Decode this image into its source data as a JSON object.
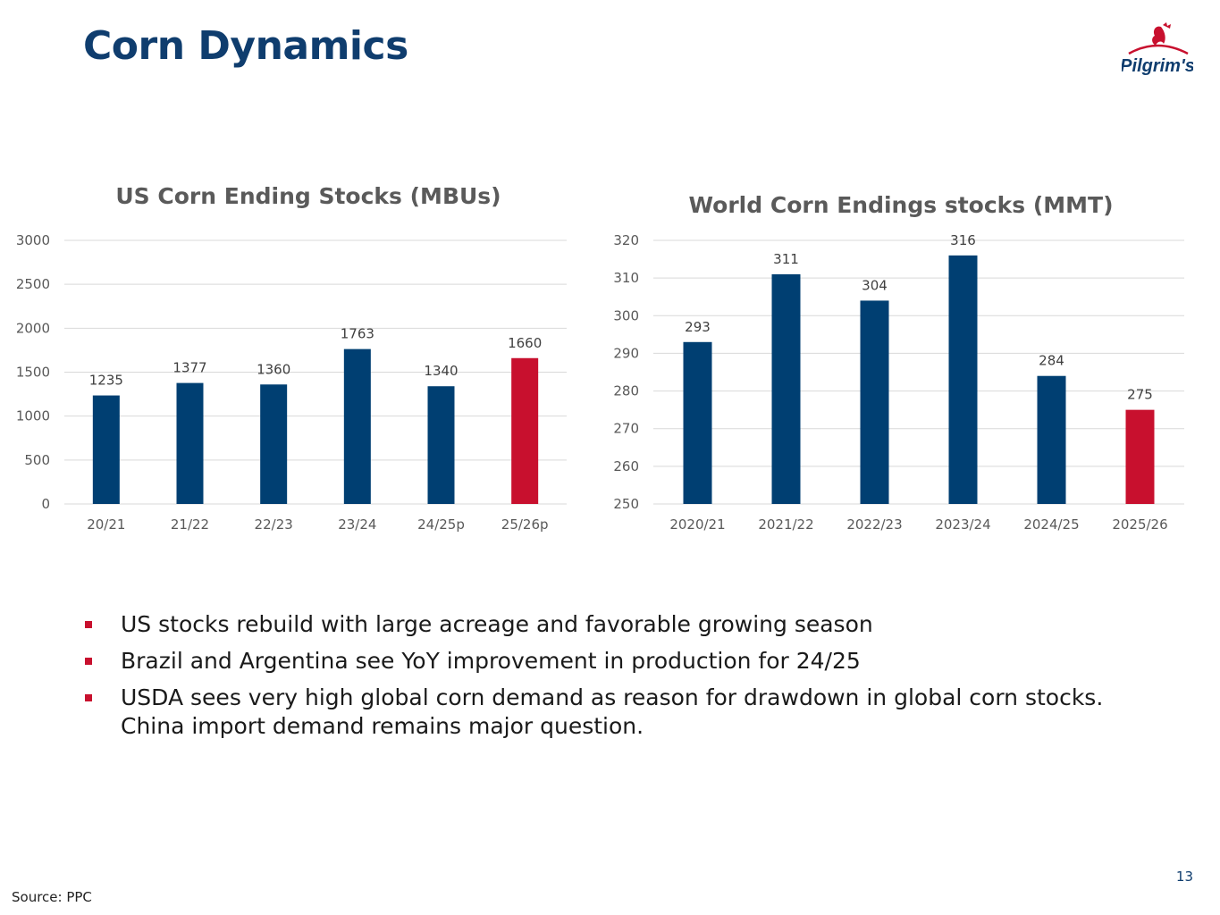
{
  "slide": {
    "title": "Corn Dynamics",
    "logo_text": "Pilgrim's",
    "page_number": "13",
    "source": "Source: PPC"
  },
  "colors": {
    "bar": "#003f72",
    "highlight": "#c8102e",
    "title": "#0f3d6e"
  },
  "bullets": [
    "US stocks rebuild with large acreage and favorable growing season",
    "Brazil and Argentina see YoY improvement in production for 24/25",
    "USDA sees very high global corn demand as reason for drawdown in global corn stocks. China import demand remains major question."
  ],
  "chart_data": [
    {
      "type": "bar",
      "title": "US Corn Ending Stocks (MBUs)",
      "categories": [
        "20/21",
        "21/22",
        "22/23",
        "23/24",
        "24/25p",
        "25/26p"
      ],
      "values": [
        1235,
        1377,
        1360,
        1763,
        1340,
        1660
      ],
      "data_labels": [
        "1235",
        "1377",
        "1360",
        "1763",
        "1340",
        "1660"
      ],
      "ylim": [
        0,
        3000
      ],
      "yticks": [
        0,
        500,
        1000,
        1500,
        2000,
        2500,
        3000
      ],
      "highlight_index": 5,
      "xlabel": "",
      "ylabel": "",
      "grid": true
    },
    {
      "type": "bar",
      "title": "World Corn Endings stocks (MMT)",
      "categories": [
        "2020/21",
        "2021/22",
        "2022/23",
        "2023/24",
        "2024/25",
        "2025/26"
      ],
      "values": [
        293,
        311,
        304,
        316,
        284,
        275
      ],
      "data_labels": [
        "293",
        "311",
        "304",
        "316",
        "284",
        "275"
      ],
      "ylim": [
        250,
        320
      ],
      "yticks": [
        250,
        260,
        270,
        280,
        290,
        300,
        310,
        320
      ],
      "highlight_index": 5,
      "xlabel": "",
      "ylabel": "",
      "grid": true
    }
  ]
}
